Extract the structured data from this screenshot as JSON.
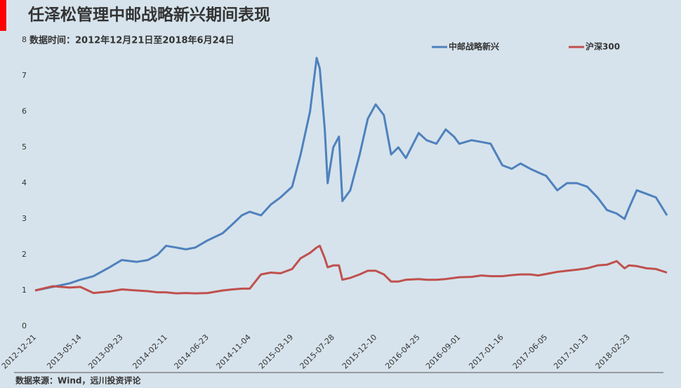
{
  "chart_data": {
    "type": "line",
    "title": "任泽松管理中邮战略新兴期间表现",
    "subtitle": "数据时间：2012年12月21日至2018年6月24日",
    "source": "数据来源：Wind，远川投资评论",
    "x": [
      "2012-12-21",
      "2013-02-15",
      "2013-04-10",
      "2013-05-14",
      "2013-06-25",
      "2013-08-15",
      "2013-09-23",
      "2013-11-10",
      "2013-12-15",
      "2014-01-15",
      "2014-02-11",
      "2014-03-15",
      "2014-04-15",
      "2014-05-15",
      "2014-06-23",
      "2014-08-10",
      "2014-09-10",
      "2014-10-10",
      "2014-11-04",
      "2014-12-10",
      "2015-01-10",
      "2015-02-10",
      "2015-03-19",
      "2015-04-15",
      "2015-05-15",
      "2015-06-05",
      "2015-06-15",
      "2015-07-01",
      "2015-07-10",
      "2015-07-28",
      "2015-08-15",
      "2015-08-26",
      "2015-09-20",
      "2015-10-20",
      "2015-11-15",
      "2015-12-10",
      "2016-01-05",
      "2016-01-28",
      "2016-02-20",
      "2016-03-15",
      "2016-04-25",
      "2016-05-20",
      "2016-06-20",
      "2016-07-20",
      "2016-08-15",
      "2016-09-01",
      "2016-10-10",
      "2016-11-10",
      "2016-12-10",
      "2017-01-16",
      "2017-02-15",
      "2017-03-15",
      "2017-04-15",
      "2017-05-10",
      "2017-06-05",
      "2017-07-10",
      "2017-08-10",
      "2017-09-10",
      "2017-10-13",
      "2017-11-15",
      "2017-12-15",
      "2018-01-15",
      "2018-02-09",
      "2018-02-23",
      "2018-03-20",
      "2018-04-20",
      "2018-05-20",
      "2018-06-24"
    ],
    "series": [
      {
        "name": "中邮战略新兴",
        "color": "#4f81bd",
        "values": [
          1.0,
          1.1,
          1.2,
          1.3,
          1.4,
          1.65,
          1.85,
          1.8,
          1.85,
          2.0,
          2.25,
          2.2,
          2.15,
          2.2,
          2.4,
          2.6,
          2.85,
          3.1,
          3.2,
          3.1,
          3.4,
          3.6,
          3.9,
          4.8,
          6.0,
          7.5,
          7.2,
          5.5,
          4.0,
          5.0,
          5.3,
          3.5,
          3.8,
          4.8,
          5.8,
          6.2,
          5.9,
          4.8,
          5.0,
          4.7,
          5.4,
          5.2,
          5.1,
          5.5,
          5.3,
          5.1,
          5.2,
          5.15,
          5.1,
          4.5,
          4.4,
          4.55,
          4.4,
          4.3,
          4.2,
          3.8,
          4.0,
          4.0,
          3.9,
          3.6,
          3.25,
          3.15,
          3.0,
          3.3,
          3.8,
          3.7,
          3.6,
          3.1
        ]
      },
      {
        "name": "沪深300",
        "color": "#c0504d",
        "values": [
          1.0,
          1.12,
          1.08,
          1.1,
          0.93,
          0.97,
          1.03,
          1.0,
          0.98,
          0.95,
          0.95,
          0.92,
          0.93,
          0.92,
          0.93,
          1.0,
          1.03,
          1.05,
          1.05,
          1.45,
          1.5,
          1.48,
          1.6,
          1.9,
          2.05,
          2.2,
          2.25,
          1.9,
          1.65,
          1.7,
          1.7,
          1.3,
          1.35,
          1.45,
          1.55,
          1.55,
          1.45,
          1.25,
          1.25,
          1.3,
          1.32,
          1.3,
          1.3,
          1.32,
          1.35,
          1.37,
          1.38,
          1.42,
          1.4,
          1.4,
          1.43,
          1.45,
          1.45,
          1.42,
          1.46,
          1.52,
          1.55,
          1.58,
          1.62,
          1.7,
          1.72,
          1.82,
          1.62,
          1.7,
          1.68,
          1.62,
          1.6,
          1.5
        ]
      }
    ],
    "xlim": [
      "2012-12-21",
      "2018-06-24"
    ],
    "xticks": [
      "2012-12-21",
      "2013-05-14",
      "2013-09-23",
      "2014-02-11",
      "2014-06-23",
      "2014-11-04",
      "2015-03-19",
      "2015-07-28",
      "2015-12-10",
      "2016-04-25",
      "2016-09-01",
      "2017-01-16",
      "2017-06-05",
      "2017-10-13",
      "2018-02-23"
    ],
    "ylim": [
      0,
      8
    ],
    "yticks": [
      0,
      1,
      2,
      3,
      4,
      5,
      6,
      7,
      8
    ]
  }
}
